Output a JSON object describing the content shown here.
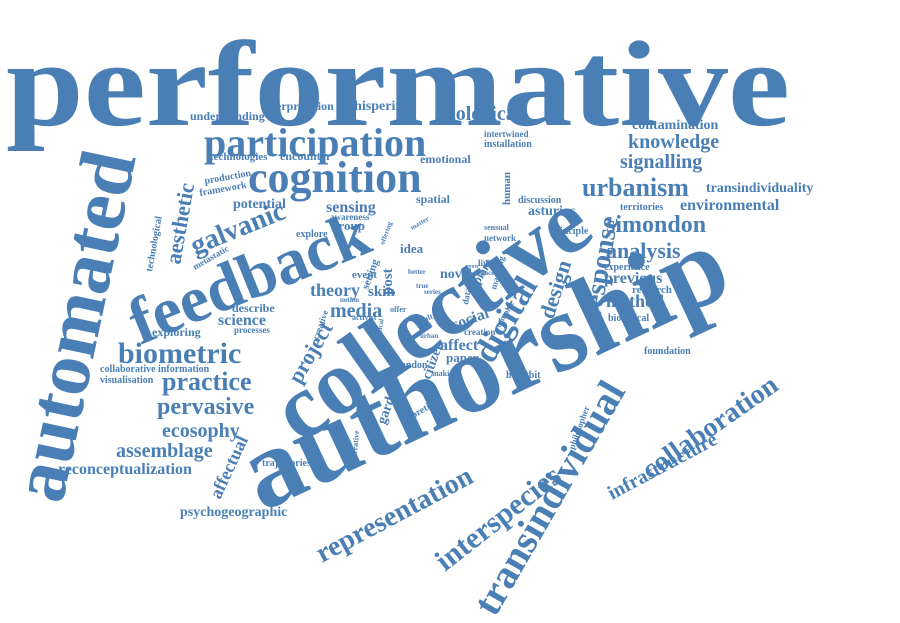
{
  "colors": {
    "word": "#4a7fb5",
    "background": "#ffffff"
  },
  "words": {
    "performative": "performative",
    "authorship": "authorship",
    "collective": "collective",
    "automated": "automated",
    "feedback": "feedback",
    "cognition": "cognition",
    "participation": "participation",
    "transindividual": "transindividual",
    "interspecies": "interspecies",
    "representation": "representation",
    "collaboration": "collaboration",
    "infrastructure": "infrastructure",
    "digital": "digital",
    "response": "response",
    "design": "design",
    "biometric": "biometric",
    "practice": "practice",
    "pervasive": "pervasive",
    "ecosophy": "ecosophy",
    "assemblage": "assemblage",
    "reconceptualization": "reconceptualization",
    "psychogeographic": "psychogeographic",
    "affectual": "affectual",
    "galvanic": "galvanic",
    "aesthetic": "aesthetic",
    "ecological": "ecological",
    "knowledge": "knowledge",
    "contamination": "contamination",
    "signalling": "signalling",
    "urbanism": "urbanism",
    "transindividuality": "transindividuality",
    "environmental": "environmental",
    "simondon": "simondon",
    "analysis": "analysis",
    "previous": "previous",
    "research": "research",
    "method": "method",
    "biological": "biological",
    "foundation": "foundation",
    "territories": "territories",
    "experience": "experience",
    "asturias": "asturias",
    "discussion": "discussion",
    "principle": "principle",
    "human": "human",
    "project": "project",
    "theory": "theory",
    "media": "media",
    "science": "science",
    "sensing": "sensing",
    "group": "group",
    "awareness": "awareness",
    "spatial": "spatial",
    "potential": "potential",
    "explore": "explore",
    "exploring": "exploring",
    "describe": "describe",
    "processes": "processes",
    "visualisation": "visualisation",
    "collaborative": "collaborative",
    "information": "information",
    "trajectories": "trajectories",
    "understanding": "understanding",
    "interpretation": "interpretation",
    "whispering": "whispering",
    "technologies": "technologies",
    "encounter": "encounter",
    "emotional": "emotional",
    "production": "production",
    "framework": "framework",
    "technological": "technological",
    "metastatic": "metastatic",
    "intertwined": "intertwined",
    "installation": "installation",
    "social": "social",
    "affect": "affect",
    "paper": "paper",
    "citizen": "citizen",
    "garden": "garden",
    "london": "london",
    "theoretical": "theoretical",
    "heartbit": "heartbit",
    "novel": "novel",
    "idea": "idea",
    "skin": "skin",
    "post": "post",
    "event": "event",
    "setting": "setting",
    "plant": "plant",
    "living": "living",
    "mapping": "mapping",
    "network": "network",
    "sensual": "sensual",
    "creation": "creation",
    "making": "making",
    "philosopher": "philosopher",
    "generative": "generative",
    "creative": "creative",
    "activist": "activist",
    "offer": "offer",
    "result": "result",
    "complex": "complex",
    "better": "better",
    "data": "data",
    "space": "space",
    "series": "series",
    "urban": "urban",
    "eye": "eye",
    "critical": "critical",
    "notion": "notion",
    "offering": "offering",
    "matter": "matter",
    "true": "true",
    "grow": "grow"
  }
}
